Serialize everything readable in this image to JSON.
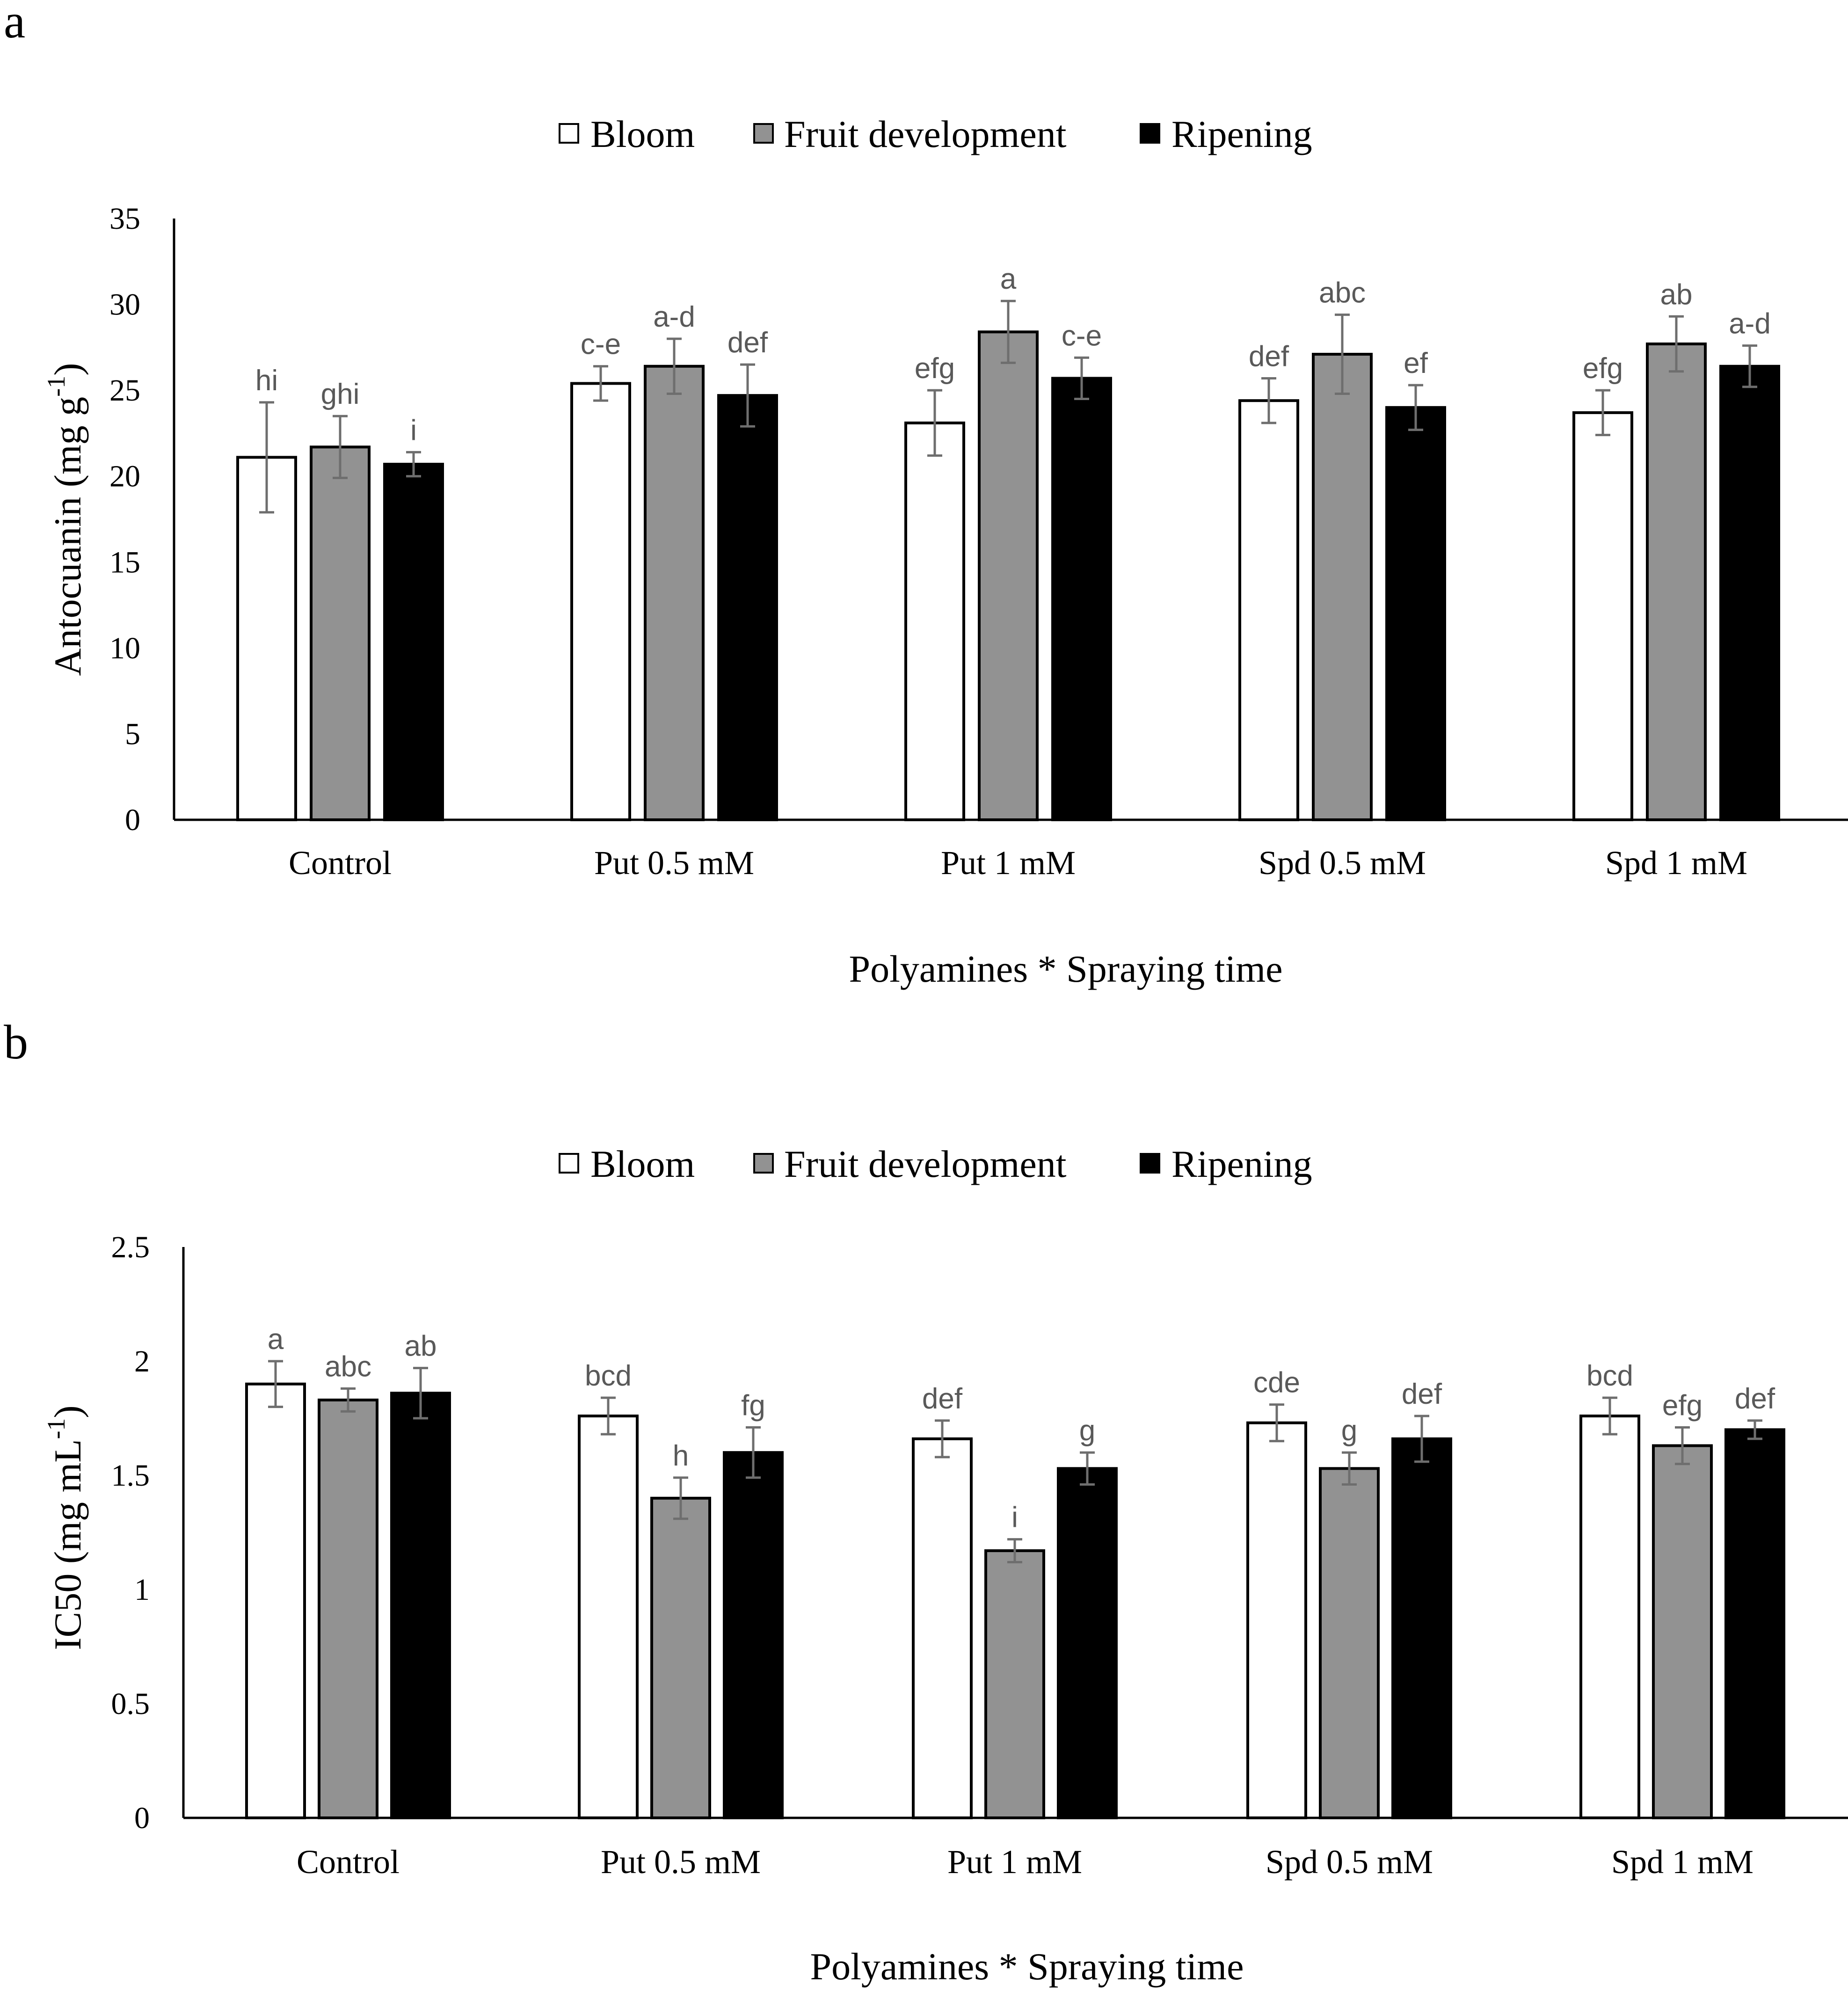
{
  "chart_data": [
    {
      "panel_label": "a",
      "type": "bar",
      "legend": [
        "Bloom",
        "Fruit development",
        "Ripening"
      ],
      "legend_position": "top-center",
      "xlabel": "Polyamines * Spraying time",
      "ylabel": "Antocuanin (mg g-1)",
      "ylabel_text": "Antocuanin (mg g",
      "ylabel_sup": "-1",
      "ylabel_end": ")",
      "ylim": [
        0,
        35
      ],
      "yticks": [
        0,
        5,
        10,
        15,
        20,
        25,
        30,
        35
      ],
      "ytick_labels": [
        "0",
        "5",
        "10",
        "15",
        "20",
        "25",
        "30",
        "35"
      ],
      "grid": false,
      "categories": [
        "Control",
        "Put 0.5 mM",
        "Put 1 mM",
        "Spd 0.5 mM",
        "Spd 1 mM"
      ],
      "series": [
        {
          "name": "Bloom",
          "color": "#ffffff",
          "values": [
            21.1,
            25.4,
            23.1,
            24.4,
            23.7
          ],
          "errors": [
            3.2,
            1.0,
            1.9,
            1.3,
            1.3
          ],
          "labels": [
            "hi",
            "c-e",
            "efg",
            "def",
            "efg"
          ]
        },
        {
          "name": "Fruit development",
          "color": "#929292",
          "values": [
            21.7,
            26.4,
            28.4,
            27.1,
            27.7
          ],
          "errors": [
            1.8,
            1.6,
            1.8,
            2.3,
            1.6
          ],
          "labels": [
            "ghi",
            "a-d",
            "a",
            "abc",
            "ab"
          ]
        },
        {
          "name": "Ripening",
          "color": "#000000",
          "values": [
            20.7,
            24.7,
            25.7,
            24.0,
            26.4
          ],
          "errors": [
            0.7,
            1.8,
            1.2,
            1.3,
            1.2
          ],
          "labels": [
            "i",
            "def",
            "c-e",
            "ef",
            "a-d"
          ]
        }
      ]
    },
    {
      "panel_label": "b",
      "type": "bar",
      "legend": [
        "Bloom",
        "Fruit development",
        "Ripening"
      ],
      "legend_position": "top-center",
      "xlabel": "Polyamines * Spraying time",
      "ylabel": "IC50 (mg mL-1)",
      "ylabel_text": "IC50 (mg mL",
      "ylabel_sup": "-1",
      "ylabel_end": ")",
      "ylim": [
        0,
        2.5
      ],
      "yticks": [
        0,
        0.5,
        1,
        1.5,
        2,
        2.5
      ],
      "ytick_labels": [
        "0",
        "0.5",
        "1",
        "1.5",
        "2",
        "2.5"
      ],
      "grid": false,
      "categories": [
        "Control",
        "Put 0.5 mM",
        "Put 1 mM",
        "Spd 0.5 mM",
        "Spd 1 mM"
      ],
      "series": [
        {
          "name": "Bloom",
          "color": "#ffffff",
          "values": [
            1.9,
            1.76,
            1.66,
            1.73,
            1.76
          ],
          "errors": [
            0.1,
            0.08,
            0.08,
            0.08,
            0.08
          ],
          "labels": [
            "a",
            "bcd",
            "def",
            "cde",
            "bcd"
          ]
        },
        {
          "name": "Fruit development",
          "color": "#929292",
          "values": [
            1.83,
            1.4,
            1.17,
            1.53,
            1.63
          ],
          "errors": [
            0.05,
            0.09,
            0.05,
            0.07,
            0.08
          ],
          "labels": [
            "abc",
            "h",
            "i",
            "g",
            "efg"
          ]
        },
        {
          "name": "Ripening",
          "color": "#000000",
          "values": [
            1.86,
            1.6,
            1.53,
            1.66,
            1.7
          ],
          "errors": [
            0.11,
            0.11,
            0.07,
            0.1,
            0.04
          ],
          "labels": [
            "ab",
            "fg",
            "g",
            "def",
            "def"
          ]
        }
      ]
    }
  ],
  "colors": {
    "axis": "#000000",
    "error_bar": "#6e6e6e",
    "sig_label": "#595959"
  }
}
